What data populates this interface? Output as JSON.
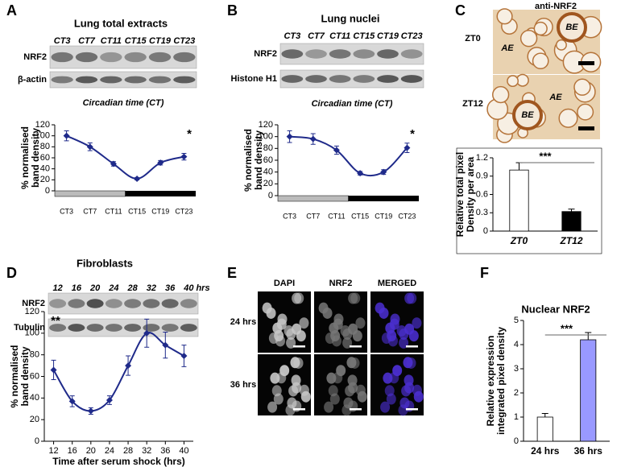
{
  "panels": {
    "A": {
      "letter": "A",
      "lanes": [
        "CT3",
        "CT7",
        "CT11",
        "CT15",
        "CT19",
        "CT23"
      ],
      "rows": [
        "NRF2",
        "β-actin"
      ],
      "caption": "Circadian time (CT)"
    },
    "B": {
      "letter": "B",
      "lanes": [
        "CT3",
        "CT7",
        "CT11",
        "CT15",
        "CT19",
        "CT23"
      ],
      "rows": [
        "NRF2",
        "Histone H1"
      ],
      "caption": "Circadian time (CT)"
    },
    "C": {
      "letter": "C",
      "title": "anti-NRF2",
      "rows": [
        "ZT0",
        "ZT12"
      ],
      "image_labels": [
        [
          "BE",
          "AE"
        ],
        [
          "AE",
          "BE"
        ]
      ]
    },
    "D": {
      "letter": "D",
      "lanes": [
        "12",
        "16",
        "20",
        "24",
        "28",
        "32",
        "36",
        "40"
      ],
      "lanes_unit": "hrs",
      "rows": [
        "NRF2",
        "Tubulin"
      ]
    },
    "E": {
      "letter": "E",
      "columns": [
        "DAPI",
        "NRF2",
        "MERGED"
      ],
      "rows": [
        "24 hrs",
        "36 hrs"
      ]
    },
    "F": {
      "letter": "F"
    }
  },
  "chart_data": [
    {
      "type": "line",
      "title": "Lung total extracts",
      "categories": [
        "CT3",
        "CT7",
        "CT11",
        "CT15",
        "CT19",
        "CT23"
      ],
      "values": [
        100,
        80,
        49,
        22,
        51,
        62
      ],
      "errors": [
        9,
        7,
        4,
        2,
        4,
        6
      ],
      "color": "#1f2a8a",
      "ylabel": [
        "% normalised",
        "band density"
      ],
      "annotation": "*",
      "ylim": [
        0,
        120
      ],
      "yticks": [
        0,
        20,
        40,
        60,
        80,
        100,
        120
      ]
    },
    {
      "type": "line",
      "title": "Lung nuclei",
      "categories": [
        "CT3",
        "CT7",
        "CT11",
        "CT15",
        "CT19",
        "CT23"
      ],
      "values": [
        100,
        96,
        77,
        38,
        40,
        81
      ],
      "errors": [
        10,
        9,
        7,
        3,
        4,
        8
      ],
      "color": "#1f2a8a",
      "ylabel": [
        "% normalised",
        "band density"
      ],
      "annotation": "*",
      "ylim": [
        0,
        120
      ],
      "yticks": [
        0,
        20,
        40,
        60,
        80,
        100,
        120
      ]
    },
    {
      "type": "bar",
      "categories": [
        "ZT0",
        "ZT12"
      ],
      "values": [
        1.0,
        0.32
      ],
      "errors": [
        0.12,
        0.04
      ],
      "colors": [
        "#ffffff",
        "#000000"
      ],
      "ylabel": [
        "Relative total pixel",
        "Density per area"
      ],
      "annotation": "***",
      "ylim": [
        0,
        1.2
      ],
      "yticks": [
        0,
        0.3,
        0.6,
        0.9,
        1.2
      ]
    },
    {
      "type": "line",
      "title": "Fibroblasts",
      "x": [
        12,
        16,
        20,
        24,
        28,
        32,
        36,
        40
      ],
      "values": [
        66,
        37,
        28,
        38,
        70,
        100,
        89,
        79
      ],
      "errors": [
        9,
        5,
        3,
        4,
        9,
        13,
        12,
        10
      ],
      "color": "#1f2a8a",
      "xlim": [
        10,
        42
      ],
      "xticks": [
        12,
        16,
        20,
        24,
        28,
        32,
        36,
        40
      ],
      "xlabel": "Time after serum shock (hrs)",
      "ylabel": [
        "% normalised",
        "band density"
      ],
      "annotation": "**",
      "ylim": [
        0,
        120
      ],
      "yticks": [
        0,
        20,
        40,
        60,
        80,
        100,
        120
      ]
    },
    {
      "type": "bar",
      "title": "Nuclear NRF2",
      "categories": [
        "24 hrs",
        "36 hrs"
      ],
      "values": [
        1.0,
        4.2
      ],
      "errors": [
        0.15,
        0.3
      ],
      "colors": [
        "#ffffff",
        "#9999ff"
      ],
      "ylabel": [
        "Relative expression",
        "integrated pixel density"
      ],
      "annotation": "***",
      "ylim": [
        0,
        5
      ],
      "yticks": [
        0,
        1,
        2,
        3,
        4,
        5
      ]
    }
  ]
}
